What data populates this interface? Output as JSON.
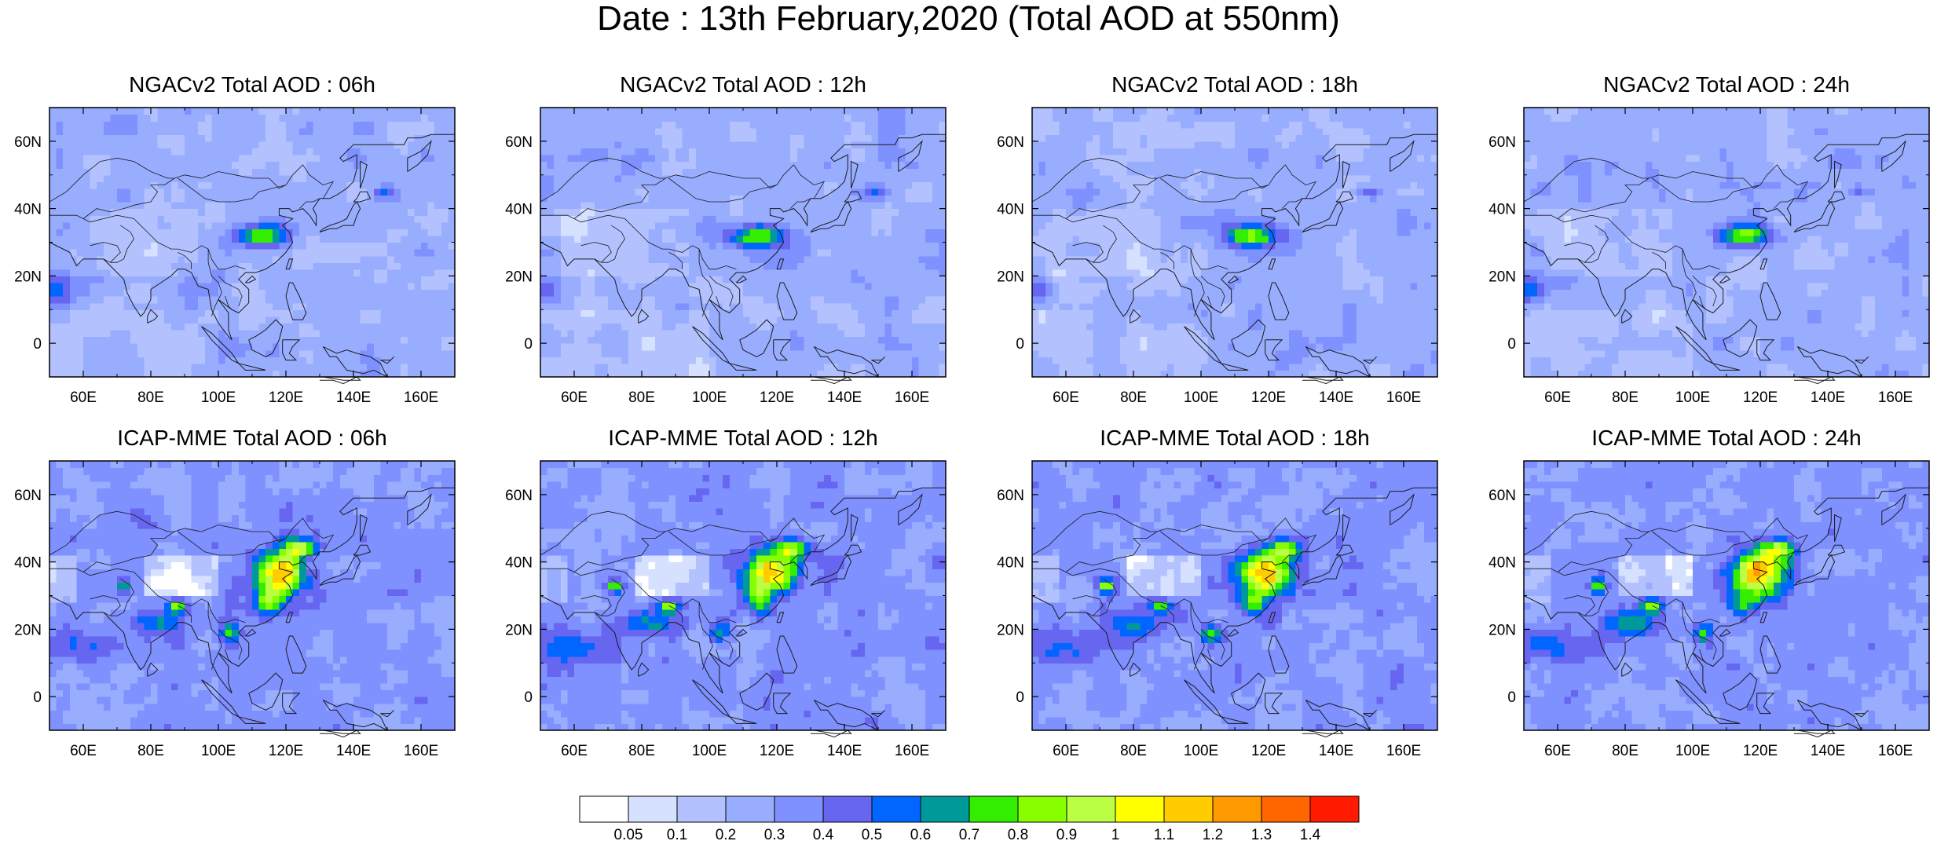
{
  "title": "Date : 13th February,2020 (Total AOD at 550nm)",
  "panels": [
    {
      "title": "NGACv2 Total AOD : 06h",
      "model": "ngac",
      "seed": 11,
      "shift": 0
    },
    {
      "title": "NGACv2 Total AOD : 12h",
      "model": "ngac",
      "seed": 23,
      "shift": 1
    },
    {
      "title": "NGACv2 Total AOD : 18h",
      "model": "ngac",
      "seed": 37,
      "shift": 2
    },
    {
      "title": "NGACv2 Total AOD : 24h",
      "model": "ngac",
      "seed": 41,
      "shift": 3
    },
    {
      "title": "ICAP-MME Total AOD : 06h",
      "model": "icap",
      "seed": 53,
      "shift": 0
    },
    {
      "title": "ICAP-MME Total AOD : 12h",
      "model": "icap",
      "seed": 67,
      "shift": 1
    },
    {
      "title": "ICAP-MME Total AOD : 18h",
      "model": "icap",
      "seed": 71,
      "shift": 2
    },
    {
      "title": "ICAP-MME Total AOD : 24h",
      "model": "icap",
      "seed": 83,
      "shift": 3
    }
  ],
  "axes": {
    "lon_range": [
      50,
      170
    ],
    "lat_range": [
      -10,
      70
    ],
    "x_ticks": [
      60,
      80,
      100,
      120,
      140,
      160
    ],
    "x_tick_labels": [
      "60E",
      "80E",
      "100E",
      "120E",
      "140E",
      "160E"
    ],
    "y_ticks": [
      0,
      20,
      40,
      60
    ],
    "y_tick_labels": [
      "0",
      "20N",
      "40N",
      "60N"
    ]
  },
  "colorbar": {
    "labels": [
      "0.05",
      "0.1",
      "0.2",
      "0.3",
      "0.4",
      "0.5",
      "0.6",
      "0.7",
      "0.8",
      "0.9",
      "1",
      "1.1",
      "1.2",
      "1.3",
      "1.4"
    ],
    "colors": [
      "#ffffff",
      "#d6e0ff",
      "#b3c2ff",
      "#99adff",
      "#7f90ff",
      "#6666f0",
      "#0066ff",
      "#00999a",
      "#33ee00",
      "#88ff00",
      "#bbff44",
      "#ffff00",
      "#ffcc00",
      "#ff9900",
      "#ff6600",
      "#ff1a00"
    ]
  }
}
